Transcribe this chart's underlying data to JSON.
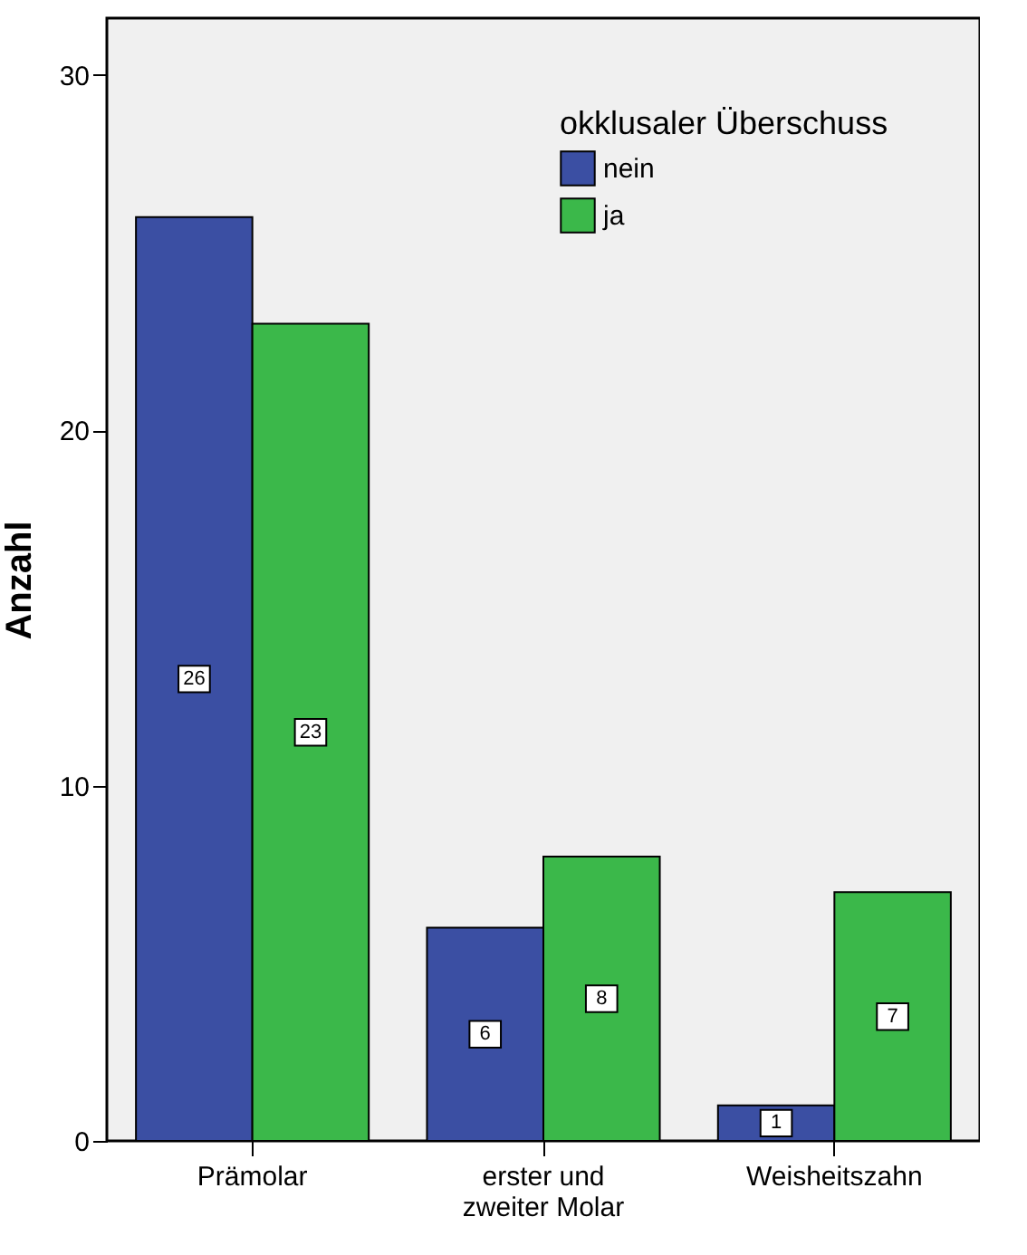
{
  "chart_data": {
    "type": "bar",
    "ylabel": "Anzahl",
    "legend_title": "okklusaler\nÜberschuss",
    "categories": [
      "Prämolar",
      "erster und\nzweiter Molar",
      "Weisheitszahn"
    ],
    "series": [
      {
        "name": "nein",
        "color": "#3b4fa3",
        "values": [
          26,
          6,
          1
        ]
      },
      {
        "name": "ja",
        "color": "#3bb84a",
        "values": [
          23,
          8,
          7
        ]
      }
    ],
    "ylim": [
      0,
      31.6
    ],
    "yticks": [
      0,
      10,
      20,
      30
    ],
    "grid": false,
    "legend": "top right",
    "data_labels": true
  }
}
